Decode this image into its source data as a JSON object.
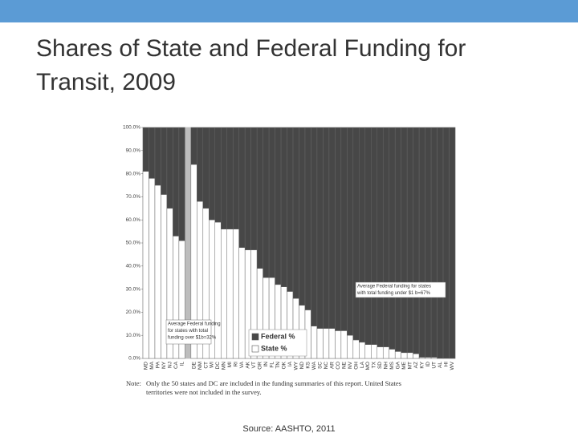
{
  "chart_data": {
    "type": "stacked_bar",
    "title": "Shares of State and Federal Funding for Transit, 2009",
    "categories": [
      "MD",
      "MA",
      "PA",
      "NY",
      "NJ",
      "CA",
      "IL",
      "DE",
      "NM",
      "CT",
      "WI",
      "DC",
      "MN",
      "MI",
      "RI",
      "VA",
      "AK",
      "VT",
      "OR",
      "IN",
      "FL",
      "TN",
      "OK",
      "IA",
      "WY",
      "ND",
      "KS",
      "WA",
      "SC",
      "NC",
      "AR",
      "CO",
      "NE",
      "NV",
      "OH",
      "LA",
      "MO",
      "TX",
      "SD",
      "NH",
      "MS",
      "GA",
      "ME",
      "MT",
      "AZ",
      "KY",
      "ID",
      "UT",
      "AL",
      "HI",
      "WV"
    ],
    "series": [
      {
        "name": "State %",
        "color": "#ffffff",
        "values": [
          81,
          78,
          75,
          71,
          65,
          53,
          51,
          84,
          68,
          65,
          60,
          59,
          56,
          56,
          56,
          48,
          47,
          47,
          39,
          35,
          35,
          32,
          31,
          29,
          26,
          23,
          21,
          14,
          13,
          13,
          13,
          12,
          12,
          10,
          8,
          7,
          6,
          6,
          5,
          5,
          4,
          3,
          2.5,
          2.5,
          2,
          0.5,
          0.5,
          0.5,
          0,
          0,
          0
        ]
      },
      {
        "name": "Federal %",
        "color": "#474747",
        "values": [
          19,
          22,
          25,
          29,
          35,
          47,
          49,
          16,
          32,
          35,
          40,
          41,
          44,
          44,
          44,
          52,
          53,
          53,
          61,
          65,
          65,
          68,
          69,
          71,
          74,
          77,
          79,
          86,
          87,
          87,
          87,
          88,
          88,
          90,
          92,
          93,
          94,
          94,
          95,
          95,
          96,
          97,
          97.5,
          97.5,
          98,
          99.5,
          99.5,
          99.5,
          100,
          100,
          100
        ]
      }
    ],
    "ylim": [
      0,
      100
    ],
    "yticks": [
      {
        "value": 0,
        "label": "0.0%"
      },
      {
        "value": 10,
        "label": "10.0%"
      },
      {
        "value": 20,
        "label": "20.0%"
      },
      {
        "value": 30,
        "label": "30.0%"
      },
      {
        "value": 40,
        "label": "40.0%"
      },
      {
        "value": 50,
        "label": "50.0%"
      },
      {
        "value": 60,
        "label": "60.0%"
      },
      {
        "value": 70,
        "label": "70.0%"
      },
      {
        "value": 80,
        "label": "80.0%"
      },
      {
        "value": 90,
        "label": "90.0%"
      },
      {
        "value": 100,
        "label": "100.0%"
      }
    ],
    "annotations": [
      [
        "Average Federal funding",
        "for states with total",
        "funding over $1b=32%"
      ],
      [
        "Average Federal funding for states",
        "with total funding under $1 b=67%"
      ]
    ],
    "note_label": "Note:",
    "note": [
      "Only the 50 states and DC are included in the funding summaries of this report. United States",
      "territories were not included in the survey."
    ],
    "source": "Source: AASHTO, 2011"
  }
}
